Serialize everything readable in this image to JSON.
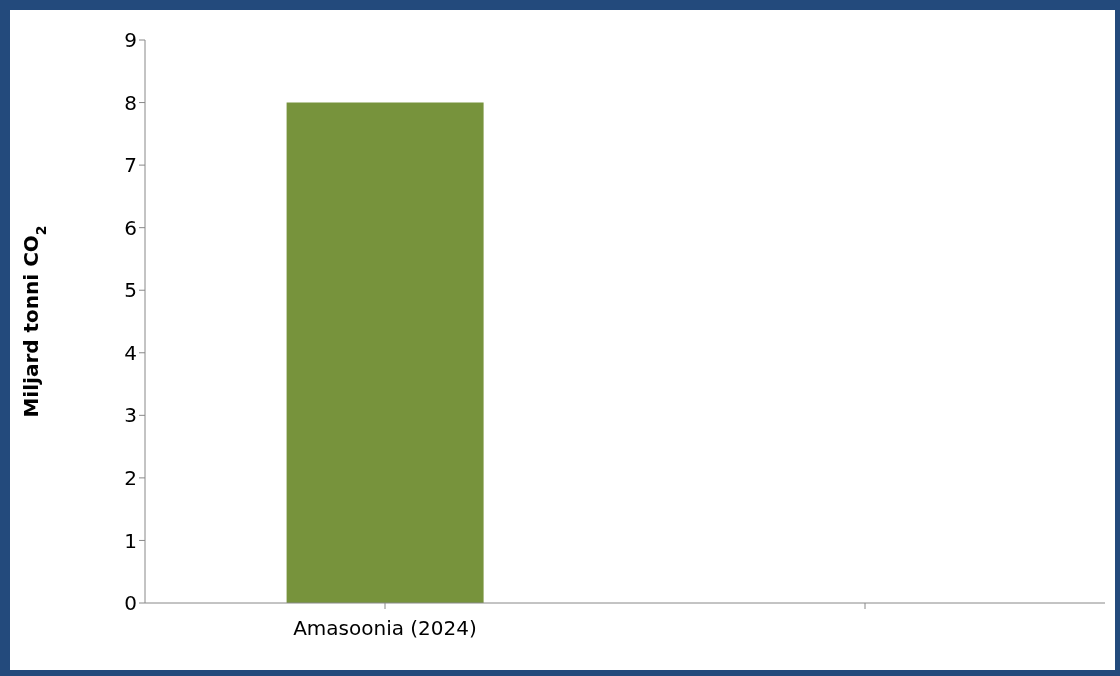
{
  "chart_data": {
    "type": "bar",
    "ylabel": "Miljard tonni CO$_{2}$",
    "categories": [
      "Amasoonia (2024)",
      null
    ],
    "values": [
      8,
      null
    ],
    "color": "#77933c",
    "ylim": [
      0,
      9
    ],
    "yticks": [
      0,
      1,
      2,
      3,
      4,
      5,
      6,
      7,
      8,
      9
    ],
    "grid": false,
    "legend": false
  }
}
